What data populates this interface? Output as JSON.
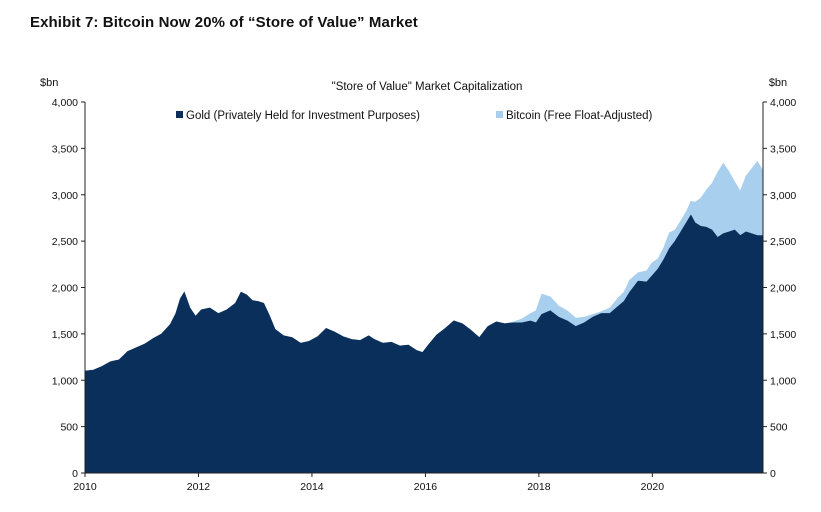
{
  "exhibit_title": "Exhibit 7: Bitcoin Now 20% of “Store of Value” Market",
  "chart_data": {
    "type": "area",
    "stacked": true,
    "title": "\"Store of Value\" Market Capitalization",
    "ylabel_left": "$bn",
    "ylabel_right": "$bn",
    "ylim": [
      0,
      4000
    ],
    "xlim": [
      2010.0,
      2021.95
    ],
    "y_ticks": [
      0,
      500,
      1000,
      1500,
      2000,
      2500,
      3000,
      3500,
      4000
    ],
    "y_tick_labels": [
      "0",
      "500",
      "1,000",
      "1,500",
      "2,000",
      "2,500",
      "3,000",
      "3,500",
      "4,000"
    ],
    "x_ticks": [
      2010,
      2012,
      2014,
      2016,
      2018,
      2020
    ],
    "x_tick_labels": [
      "2010",
      "2012",
      "2014",
      "2016",
      "2018",
      "2020"
    ],
    "legend_position": "top-center",
    "colors": {
      "gold": "#0b2f5b",
      "bitcoin": "#a9cfee"
    },
    "x": [
      2010.0,
      2010.15,
      2010.3,
      2010.45,
      2010.6,
      2010.75,
      2010.9,
      2011.05,
      2011.2,
      2011.35,
      2011.5,
      2011.6,
      2011.68,
      2011.75,
      2011.85,
      2011.95,
      2012.05,
      2012.2,
      2012.35,
      2012.5,
      2012.65,
      2012.75,
      2012.85,
      2012.95,
      2013.05,
      2013.15,
      2013.25,
      2013.35,
      2013.5,
      2013.65,
      2013.8,
      2013.95,
      2014.1,
      2014.25,
      2014.4,
      2014.55,
      2014.7,
      2014.85,
      2015.0,
      2015.1,
      2015.25,
      2015.4,
      2015.55,
      2015.7,
      2015.85,
      2015.95,
      2016.05,
      2016.2,
      2016.35,
      2016.5,
      2016.65,
      2016.8,
      2016.95,
      2017.1,
      2017.25,
      2017.4,
      2017.55,
      2017.7,
      2017.85,
      2017.95,
      2018.05,
      2018.2,
      2018.35,
      2018.5,
      2018.65,
      2018.8,
      2018.95,
      2019.1,
      2019.25,
      2019.4,
      2019.5,
      2019.6,
      2019.75,
      2019.9,
      2020.0,
      2020.1,
      2020.2,
      2020.3,
      2020.4,
      2020.5,
      2020.6,
      2020.68,
      2020.75,
      2020.85,
      2020.95,
      2021.05,
      2021.15,
      2021.25,
      2021.35,
      2021.45,
      2021.55,
      2021.65,
      2021.75,
      2021.85,
      2021.95
    ],
    "series": [
      {
        "name": "Gold (Privately Held for Investment Purposes)",
        "values": [
          1100,
          1110,
          1150,
          1200,
          1220,
          1310,
          1350,
          1390,
          1450,
          1500,
          1600,
          1720,
          1880,
          1950,
          1780,
          1690,
          1760,
          1780,
          1720,
          1760,
          1830,
          1950,
          1920,
          1860,
          1850,
          1830,
          1700,
          1550,
          1480,
          1460,
          1400,
          1420,
          1470,
          1560,
          1520,
          1470,
          1440,
          1430,
          1480,
          1440,
          1400,
          1410,
          1370,
          1380,
          1320,
          1300,
          1380,
          1490,
          1560,
          1640,
          1610,
          1540,
          1460,
          1580,
          1630,
          1610,
          1620,
          1620,
          1640,
          1620,
          1710,
          1750,
          1680,
          1640,
          1580,
          1620,
          1680,
          1720,
          1720,
          1800,
          1850,
          1950,
          2070,
          2060,
          2130,
          2200,
          2300,
          2420,
          2500,
          2600,
          2700,
          2780,
          2700,
          2660,
          2650,
          2620,
          2540,
          2580,
          2600,
          2620,
          2560,
          2600,
          2580,
          2560,
          2560
        ]
      },
      {
        "name": "Bitcoin (Free Float-Adjusted)",
        "values": [
          0,
          0,
          0,
          0,
          0,
          0,
          0,
          0,
          0,
          0,
          0,
          0,
          0,
          0,
          0,
          0,
          0,
          0,
          0,
          0,
          0,
          0,
          0,
          0,
          0,
          0,
          0,
          0,
          0,
          0,
          0,
          0,
          0,
          0,
          0,
          0,
          0,
          0,
          0,
          0,
          0,
          0,
          0,
          0,
          0,
          0,
          0,
          0,
          0,
          0,
          0,
          0,
          0,
          0,
          0,
          0,
          10,
          40,
          80,
          130,
          220,
          150,
          120,
          110,
          90,
          60,
          30,
          20,
          60,
          90,
          100,
          130,
          90,
          120,
          140,
          110,
          130,
          170,
          120,
          120,
          120,
          150,
          220,
          300,
          400,
          500,
          700,
          760,
          650,
          520,
          480,
          600,
          700,
          800,
          700
        ]
      }
    ]
  }
}
